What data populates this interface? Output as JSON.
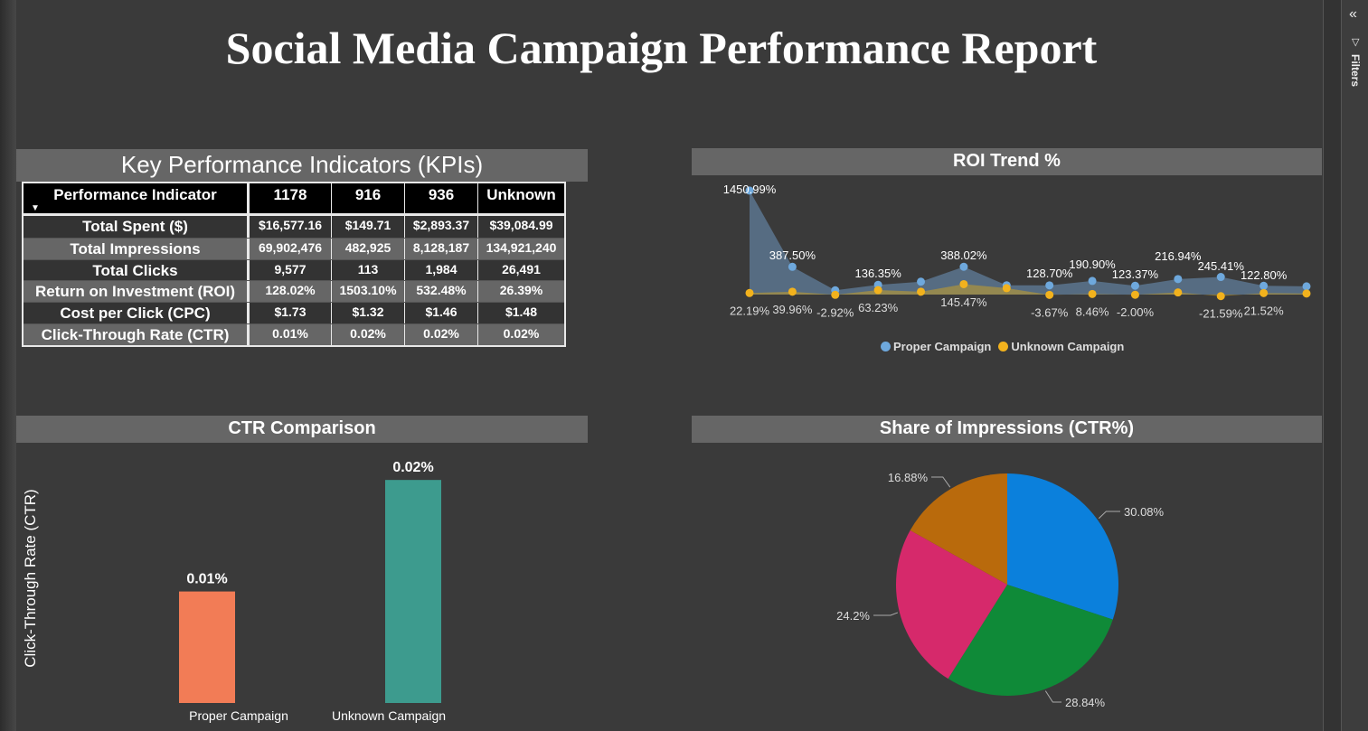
{
  "report_title": "Social Media Campaign Performance Report",
  "filters_pane": {
    "label": "Filters",
    "collapse_icon": "double-chevron-left-icon",
    "filter_icon": "funnel-icon"
  },
  "kpi": {
    "title": "Key Performance Indicators (KPIs)",
    "columns": [
      "Performance Indicator",
      "1178",
      "916",
      "936",
      "Unknown"
    ],
    "rows": [
      {
        "label": "Total Spent ($)",
        "values": [
          "$16,577.16",
          "$149.71",
          "$2,893.37",
          "$39,084.99"
        ]
      },
      {
        "label": "Total Impressions",
        "values": [
          "69,902,476",
          "482,925",
          "8,128,187",
          "134,921,240"
        ]
      },
      {
        "label": "Total Clicks",
        "values": [
          "9,577",
          "113",
          "1,984",
          "26,491"
        ]
      },
      {
        "label": "Return on Investment (ROI)",
        "values": [
          "128.02%",
          "1503.10%",
          "532.48%",
          "26.39%"
        ]
      },
      {
        "label": "Cost per Click (CPC)",
        "values": [
          "$1.73",
          "$1.32",
          "$1.46",
          "$1.48"
        ]
      },
      {
        "label": "Click-Through Rate (CTR)",
        "values": [
          "0.01%",
          "0.02%",
          "0.02%",
          "0.02%"
        ]
      }
    ]
  },
  "roi_panel_title": "ROI Trend %",
  "ctr_panel_title": "CTR Comparison",
  "pie_panel_title": "Share of Impressions (CTR%)",
  "chart_data": [
    {
      "type": "area",
      "title": "ROI Trend %",
      "x": [
        1,
        2,
        3,
        4,
        5,
        6,
        7,
        8,
        9,
        10,
        11,
        12,
        13,
        14
      ],
      "series": [
        {
          "name": "Proper Campaign",
          "color": "#6ea8dc",
          "values": [
            1450.99,
            387.5,
            60,
            136.35,
            180,
            388.02,
            130,
            128.7,
            190.9,
            123.37,
            216.94,
            245.41,
            122.8,
            115
          ],
          "labels": [
            "1450.99%",
            "387.50%",
            "",
            "136.35%",
            "",
            "388.02%",
            "",
            "128.70%",
            "190.90%",
            "123.37%",
            "216.94%",
            "245.41%",
            "122.80%",
            ""
          ]
        },
        {
          "name": "Unknown Campaign",
          "color": "#f2b21d",
          "values": [
            22.19,
            39.96,
            -2.92,
            63.23,
            40,
            145.47,
            90,
            -3.67,
            8.46,
            -2.0,
            30,
            -21.59,
            21.52,
            15
          ],
          "labels": [
            "22.19%",
            "39.96%",
            "-2.92%",
            "63.23%",
            "",
            "145.47%",
            "",
            "-3.67%",
            "8.46%",
            "-2.00%",
            "",
            "-21.59%",
            "21.52%",
            ""
          ]
        }
      ],
      "ylim": [
        -50,
        1500
      ],
      "legend_position": "bottom",
      "grid": false
    },
    {
      "type": "bar",
      "title": "CTR Comparison",
      "categories": [
        "Proper Campaign",
        "Unknown Campaign"
      ],
      "values": [
        0.01,
        0.02
      ],
      "labels": [
        "0.01%",
        "0.02%"
      ],
      "colors": [
        "#f27c56",
        "#3d9b8e"
      ],
      "ylabel": "Click-Through Rate (CTR)",
      "ylim": [
        0,
        0.0205
      ],
      "grid": false
    },
    {
      "type": "pie",
      "title": "Share of Impressions (CTR%)",
      "values": [
        30.08,
        28.84,
        24.2,
        16.88
      ],
      "labels": [
        "30.08%",
        "28.84%",
        "24.2%",
        "16.88%"
      ],
      "colors": [
        "#0b80dc",
        "#0f8a38",
        "#d6296b",
        "#b96a0c"
      ]
    }
  ]
}
